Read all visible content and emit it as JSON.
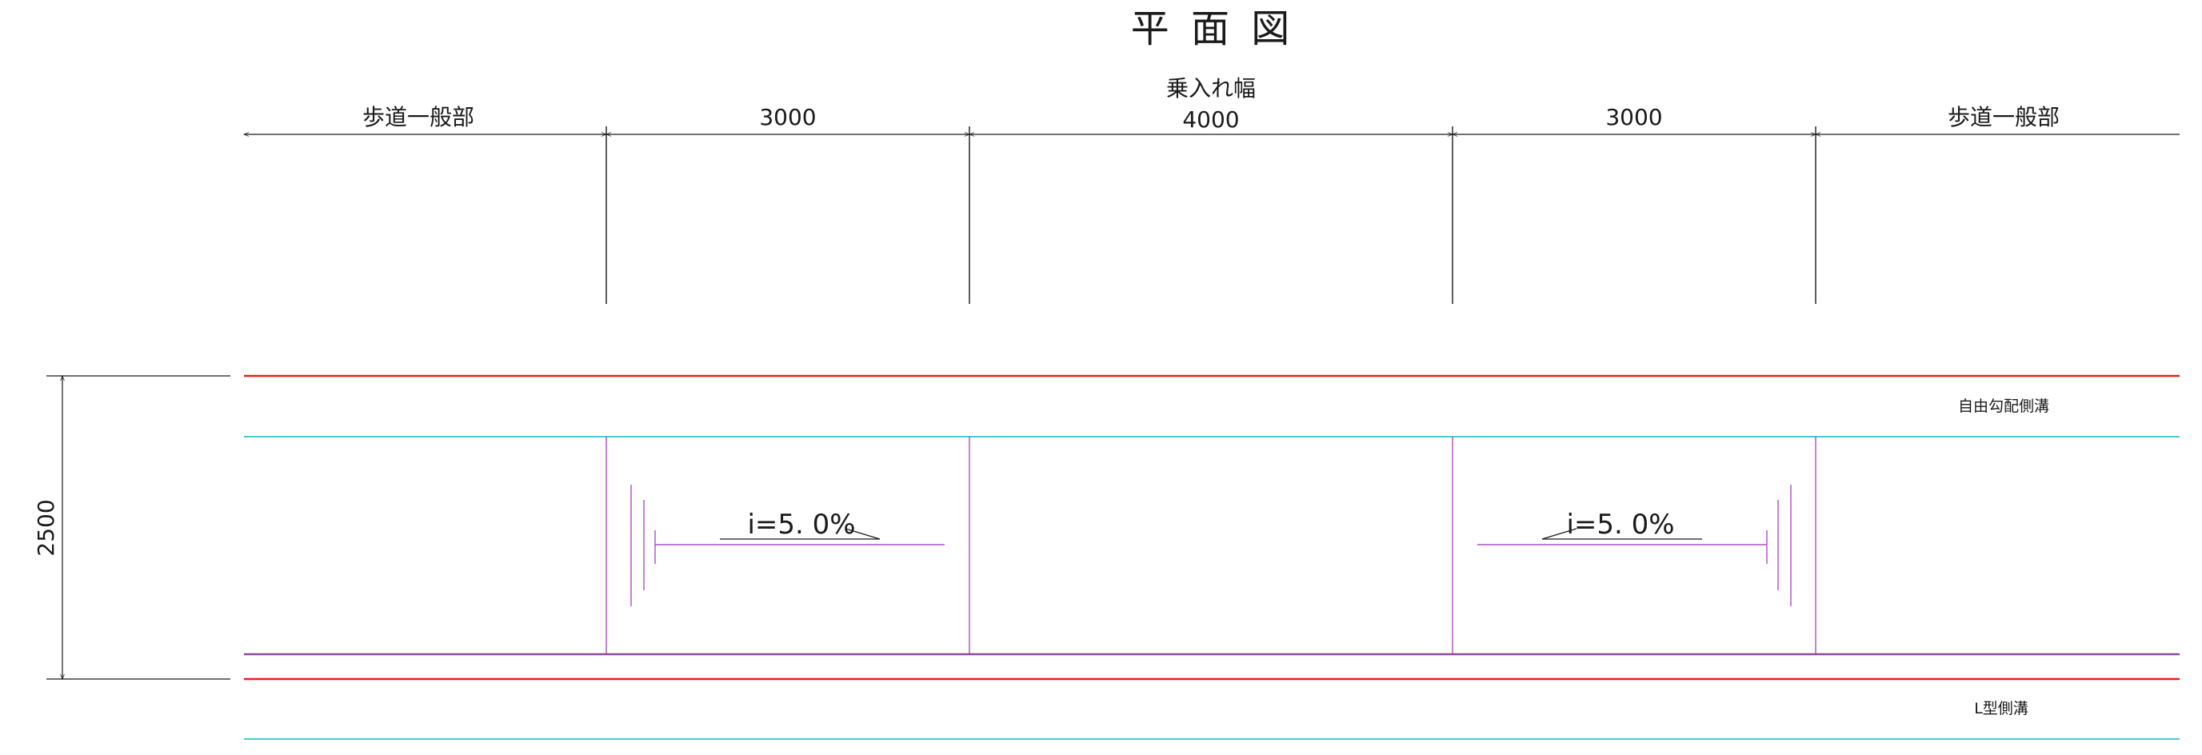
{
  "title": "平 面 図",
  "dimensions": {
    "driveway_width_label": "乗入れ幅",
    "segments": [
      {
        "label": "歩道一般部"
      },
      {
        "label": "3000"
      },
      {
        "label": "4000"
      },
      {
        "label": "3000"
      },
      {
        "label": "歩道一般部"
      }
    ],
    "height_label": "2500"
  },
  "slopes": [
    {
      "label": "i=5. 0%"
    },
    {
      "label": "i=5. 0%"
    }
  ],
  "annotations": {
    "free_gradient_gutter": "自由勾配側溝",
    "l_type_gutter": "L型側溝"
  },
  "colors": {
    "line": "#1a1a1a",
    "gutter_edge": "#e8201a",
    "gutter_inner": "#4ec8d0",
    "slope": "#b04cc4"
  }
}
